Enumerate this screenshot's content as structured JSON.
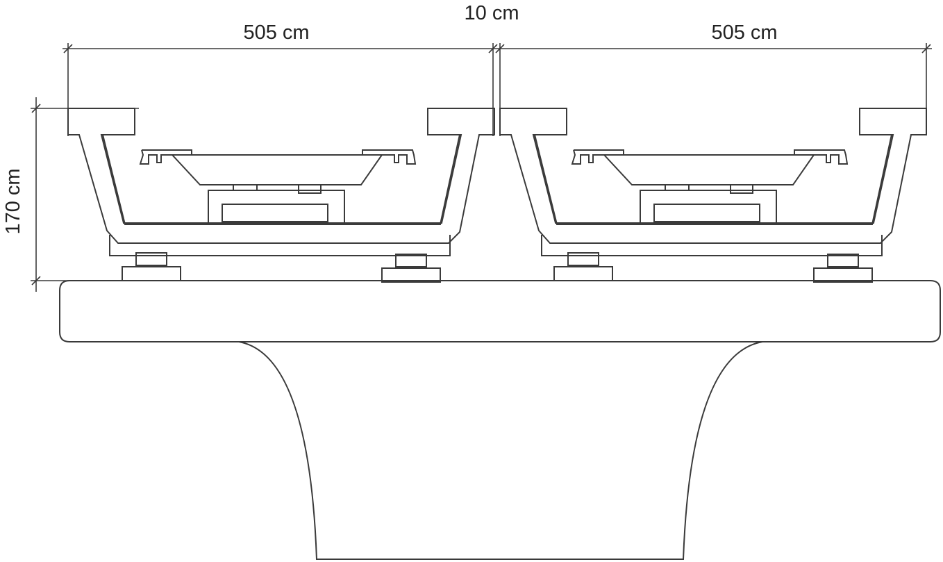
{
  "dimensions": {
    "left_width": "505 cm",
    "gap": "10 cm",
    "right_width": "505 cm",
    "height": "170 cm"
  },
  "colors": {
    "line": "#3a3a3a",
    "text": "#222222",
    "background": "#ffffff"
  }
}
